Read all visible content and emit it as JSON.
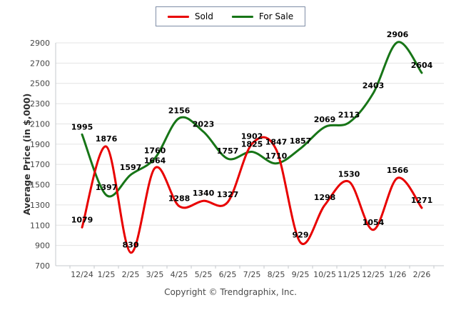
{
  "legend": {
    "items": [
      {
        "label": "Sold"
      },
      {
        "label": "For Sale"
      }
    ]
  },
  "footer": {
    "text": "Copyright © Trendgraphix, Inc."
  },
  "chart_data": {
    "type": "line",
    "title": "",
    "categories": [
      "12/24",
      "1/25",
      "2/25",
      "3/25",
      "4/25",
      "5/25",
      "6/25",
      "7/25",
      "8/25",
      "9/25",
      "10/25",
      "11/25",
      "12/25",
      "1/26",
      "2/26"
    ],
    "series": [
      {
        "name": "Sold",
        "color": "#e80000",
        "values": [
          1079,
          1876,
          830,
          1664,
          1288,
          1340,
          1327,
          1902,
          1847,
          929,
          1298,
          1530,
          1054,
          1566,
          1271
        ]
      },
      {
        "name": "For Sale",
        "color": "#177517",
        "values": [
          1995,
          1397,
          1597,
          1760,
          2156,
          2023,
          1757,
          1825,
          1710,
          1857,
          2069,
          2113,
          2403,
          2906,
          2604
        ]
      }
    ],
    "xlabel": "",
    "ylabel": "Average Price (in $,000)",
    "ylim": [
      700,
      2900
    ],
    "yticks": [
      700,
      900,
      1100,
      1300,
      1500,
      1700,
      1900,
      2100,
      2300,
      2500,
      2700,
      2900
    ],
    "grid": true,
    "legend_position": "top-center",
    "smooth": true,
    "data_labels": true
  }
}
